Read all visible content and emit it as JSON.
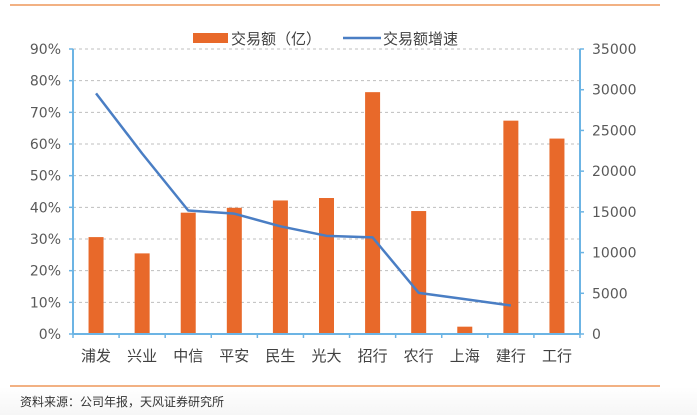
{
  "chart_data": {
    "type": "bar+line",
    "title": "",
    "categories": [
      "浦发",
      "兴业",
      "中信",
      "平安",
      "民生",
      "光大",
      "招行",
      "农行",
      "上海",
      "建行",
      "工行"
    ],
    "series": [
      {
        "name": "交易额（亿）",
        "type": "bar",
        "axis": "right",
        "color": "#e8692a",
        "values": [
          11900,
          9900,
          14900,
          15500,
          16400,
          16700,
          29700,
          15100,
          900,
          26200,
          24000
        ]
      },
      {
        "name": "交易额增速",
        "type": "line",
        "axis": "left",
        "color": "#4a7ec4",
        "values": [
          0.76,
          0.57,
          0.39,
          0.38,
          0.34,
          0.31,
          0.305,
          0.13,
          0.11,
          0.09,
          null
        ]
      }
    ],
    "left_axis": {
      "ticks": [
        "0%",
        "10%",
        "20%",
        "30%",
        "40%",
        "50%",
        "60%",
        "70%",
        "80%",
        "90%"
      ],
      "ylim": [
        0,
        0.9
      ]
    },
    "right_axis": {
      "ticks": [
        "0",
        "5000",
        "10000",
        "15000",
        "20000",
        "25000",
        "30000",
        "35000"
      ],
      "ylim": [
        0,
        35000
      ]
    },
    "legend_position": "top",
    "grid": "horizontal dashed",
    "xlabel": "",
    "ylabel": ""
  },
  "legend": {
    "bar_label": "交易额（亿）",
    "line_label": "交易额增速"
  },
  "footer": {
    "source": "资料来源：公司年报，天风证券研究所"
  },
  "colors": {
    "bar": "#e8692a",
    "line": "#4a7ec4",
    "axis": "#6cb4e4",
    "rule": "#f2b183"
  }
}
